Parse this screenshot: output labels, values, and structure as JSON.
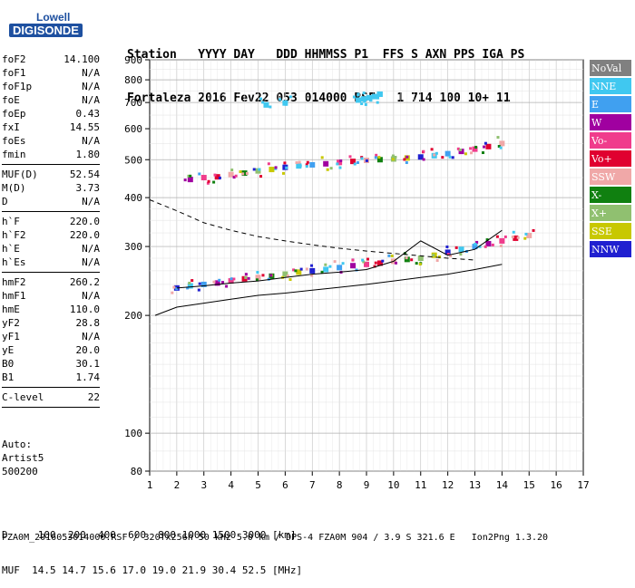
{
  "logo": {
    "line1": "Lowell",
    "line2": "DIGISONDE"
  },
  "header": {
    "labels": "Station   YYYY DAY   DDD HHMMSS P1  FFS S AXN PPS IGA PS",
    "values": "Fortaleza 2016 Fev22 053 014000 RSF   1 714 100 10+ 11"
  },
  "params": {
    "group1": [
      {
        "label": "foF2",
        "value": "14.100"
      },
      {
        "label": "foF1",
        "value": "N/A"
      },
      {
        "label": "foF1p",
        "value": "N/A"
      },
      {
        "label": "foE",
        "value": "N/A"
      },
      {
        "label": "foEp",
        "value": "0.43"
      },
      {
        "label": "fxI",
        "value": "14.55"
      },
      {
        "label": "foEs",
        "value": "N/A"
      },
      {
        "label": "fmin",
        "value": "1.80"
      }
    ],
    "group2": [
      {
        "label": "MUF(D)",
        "value": "52.54"
      },
      {
        "label": "M(D)",
        "value": "3.73"
      },
      {
        "label": "D",
        "value": "N/A"
      }
    ],
    "group3": [
      {
        "label": "h`F",
        "value": "220.0"
      },
      {
        "label": "h`F2",
        "value": "220.0"
      },
      {
        "label": "h`E",
        "value": "N/A"
      },
      {
        "label": "h`Es",
        "value": "N/A"
      }
    ],
    "group4": [
      {
        "label": "hmF2",
        "value": "260.2"
      },
      {
        "label": "hmF1",
        "value": "N/A"
      },
      {
        "label": "hmE",
        "value": "110.0"
      },
      {
        "label": "yF2",
        "value": "28.8"
      },
      {
        "label": "yF1",
        "value": "N/A"
      },
      {
        "label": "yE",
        "value": "20.0"
      },
      {
        "label": "B0",
        "value": "30.1"
      },
      {
        "label": "B1",
        "value": "1.74"
      }
    ],
    "group5": [
      {
        "label": "C-level",
        "value": "22"
      }
    ]
  },
  "auto": {
    "line1": "Auto:",
    "line2": "Artist5",
    "line3": "500200"
  },
  "legend": [
    {
      "label": "NoVal",
      "color": "#808080"
    },
    {
      "label": "NNE",
      "color": "#40c8f0"
    },
    {
      "label": "E",
      "color": "#40a0f0"
    },
    {
      "label": "W",
      "color": "#a000a0"
    },
    {
      "label": "Vo-",
      "color": "#f03c8c"
    },
    {
      "label": "Vo+",
      "color": "#e00030"
    },
    {
      "label": "SSW",
      "color": "#f0a8a8"
    },
    {
      "label": "X-",
      "color": "#108010"
    },
    {
      "label": "X+",
      "color": "#90c070"
    },
    {
      "label": "SSE",
      "color": "#c8c800"
    },
    {
      "label": "NNW",
      "color": "#2020d0"
    }
  ],
  "bottom": {
    "line1": "D     100  200  400  600  800 1000 1500 3000 [km]",
    "line2": "MUF  14.5 14.7 15.6 17.0 19.0 21.9 30.4 52.5 [MHz]"
  },
  "footer": "FZA0M_2016053014000.RSF / 320fx256h 50 kHz 5.0 km / DPS-4 FZA0M 904 / 3.9 S 321.6 E   Ion2Png 1.3.20",
  "chart_data": {
    "type": "scatter",
    "xlim": [
      1,
      17
    ],
    "ylim": [
      80,
      900
    ],
    "yscale": "log",
    "xticks": [
      1,
      2,
      3,
      4,
      5,
      6,
      7,
      8,
      9,
      10,
      11,
      12,
      13,
      14,
      15,
      16,
      17
    ],
    "yticks": [
      80,
      100,
      200,
      300,
      400,
      500,
      600,
      700,
      800,
      900
    ],
    "grid": true,
    "series": [
      {
        "name": "trace-lower",
        "kind": "line",
        "color": "#000000",
        "x": [
          1.2,
          2,
          3,
          4,
          5,
          6,
          7,
          8,
          9,
          10,
          11,
          12,
          13,
          14
        ],
        "y": [
          200,
          210,
          215,
          220,
          225,
          228,
          232,
          236,
          240,
          245,
          250,
          255,
          262,
          270
        ]
      },
      {
        "name": "trace-upper",
        "kind": "line",
        "color": "#000000",
        "x": [
          2,
          3,
          4,
          5,
          6,
          7,
          8,
          9,
          10,
          11,
          12,
          13,
          14
        ],
        "y": [
          235,
          238,
          242,
          245,
          250,
          255,
          258,
          262,
          275,
          310,
          285,
          295,
          330
        ]
      },
      {
        "name": "trace-dashed",
        "kind": "dashed",
        "color": "#000000",
        "x": [
          1,
          2,
          3,
          4,
          5,
          6,
          7,
          8,
          9,
          10,
          11,
          12,
          13
        ],
        "y": [
          395,
          370,
          345,
          330,
          318,
          310,
          303,
          297,
          292,
          288,
          284,
          280,
          277
        ]
      },
      {
        "name": "F-echo",
        "kind": "scatter",
        "x": [
          2,
          2.5,
          3,
          3.5,
          4,
          4.5,
          5,
          5.5,
          6,
          6.5,
          7,
          7.5,
          8,
          8.5,
          9,
          9.5,
          10,
          10.5,
          11,
          11.5,
          12,
          12.5,
          13,
          13.5,
          14,
          14.5,
          15
        ],
        "y": [
          235,
          238,
          240,
          242,
          245,
          248,
          250,
          252,
          255,
          258,
          260,
          262,
          265,
          268,
          270,
          272,
          275,
          278,
          280,
          285,
          290,
          295,
          300,
          305,
          310,
          315,
          320
        ]
      },
      {
        "name": "F-second-hop",
        "kind": "scatter",
        "x": [
          2.5,
          3,
          3.5,
          4,
          4.5,
          5,
          5.5,
          6,
          6.5,
          7,
          7.5,
          8,
          8.5,
          9,
          9.5,
          10,
          10.5,
          11,
          11.5,
          12,
          12.5,
          13,
          13.5,
          14
        ],
        "y": [
          445,
          450,
          452,
          458,
          462,
          468,
          472,
          478,
          482,
          485,
          488,
          492,
          495,
          498,
          500,
          502,
          505,
          508,
          512,
          518,
          525,
          532,
          540,
          550
        ]
      },
      {
        "name": "NNE-echo",
        "kind": "scatter",
        "x": [
          5.3,
          6.0,
          8.7,
          8.9,
          9.1,
          9.3,
          9.5
        ],
        "y": [
          690,
          698,
          710,
          715,
          720,
          725,
          735
        ]
      }
    ]
  }
}
